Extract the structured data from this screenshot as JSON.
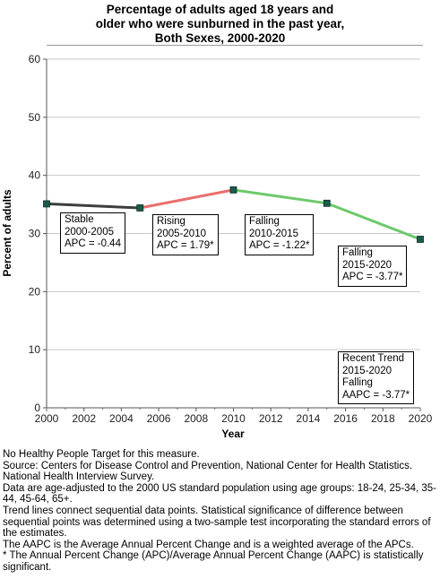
{
  "title_lines": [
    "Percentage of adults aged 18 years and",
    "older who were sunburned in the past year,",
    "Both Sexes,  2000-2020"
  ],
  "chart_data": {
    "type": "line",
    "title": "Percentage of adults aged 18 years and older who were sunburned in the past year, Both Sexes,  2000-2020",
    "xlabel": "Year",
    "ylabel": "Percent of adults",
    "xlim": [
      2000,
      2020
    ],
    "ylim": [
      0,
      60
    ],
    "x_ticks": [
      "2000",
      "2002",
      "2004",
      "2006",
      "2008",
      "2010",
      "2012",
      "2014",
      "2016",
      "2018",
      "2020"
    ],
    "y_ticks": [
      "0",
      "10",
      "20",
      "30",
      "40",
      "50",
      "60"
    ],
    "grid": true,
    "points": [
      {
        "x": 2000,
        "y": 35.1
      },
      {
        "x": 2005,
        "y": 34.4
      },
      {
        "x": 2010,
        "y": 37.5
      },
      {
        "x": 2015,
        "y": 35.2
      },
      {
        "x": 2020,
        "y": 29.0
      }
    ],
    "segments": [
      {
        "from": 2000,
        "to": 2005,
        "trend": "Stable",
        "color": "#3d3d3d"
      },
      {
        "from": 2005,
        "to": 2010,
        "trend": "Rising",
        "color": "#e8706e"
      },
      {
        "from": 2010,
        "to": 2020,
        "trend": "Falling",
        "color": "#6cc96a"
      }
    ],
    "marker_color": "#1a5c4d",
    "annotations": [
      {
        "lines": [
          "Stable",
          "2000-2005",
          "APC = -0.44"
        ]
      },
      {
        "lines": [
          "Rising",
          "2005-2010",
          "APC =  1.79*"
        ]
      },
      {
        "lines": [
          "Falling",
          "2010-2015",
          "APC = -1.22*"
        ]
      },
      {
        "lines": [
          "Falling",
          "2015-2020",
          "APC = -3.77*"
        ]
      },
      {
        "lines": [
          "Recent Trend",
          "2015-2020",
          "Falling",
          "AAPC = -3.77*"
        ]
      }
    ]
  },
  "footnotes": [
    "No Healthy People Target for this measure.",
    "Source: Centers for Disease Control and Prevention, National Center for Health Statistics. National Health Interview Survey.",
    "Data are age-adjusted to the 2000 US standard population using age groups: 18-24, 25-34, 35-44, 45-64, 65+.",
    "Trend lines connect sequential data points. Statistical significance of difference between sequential points was determined using a two-sample test incorporating the standard errors of the estimates.",
    "The AAPC is the Average Annual Percent Change and is a weighted average of the APCs.",
    "* The Annual Percent Change (APC)/Average Annual Percent Change (AAPC) is statistically significant."
  ]
}
